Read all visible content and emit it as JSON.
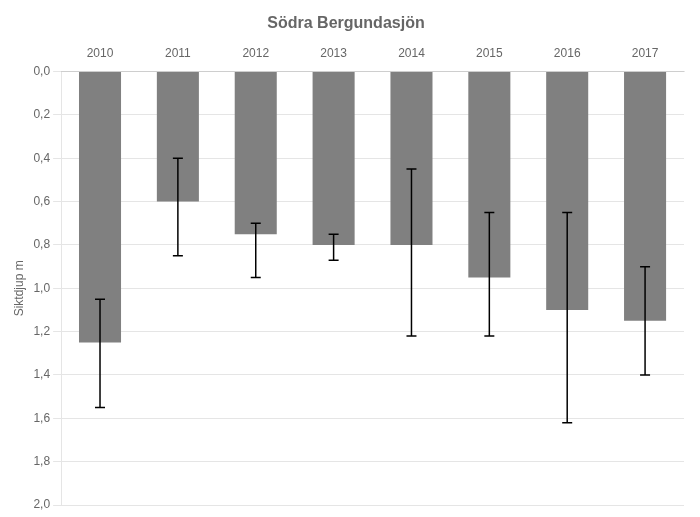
{
  "chart_data": {
    "type": "bar",
    "title": "Södra Bergundasjön",
    "ylabel": "Siktdjup m",
    "categories": [
      "2010",
      "2011",
      "2012",
      "2013",
      "2014",
      "2015",
      "2016",
      "2017"
    ],
    "values": [
      1.25,
      0.6,
      0.75,
      0.8,
      0.8,
      0.95,
      1.1,
      1.15
    ],
    "err_upper": [
      1.05,
      0.4,
      0.7,
      0.75,
      0.45,
      0.65,
      0.65,
      0.9
    ],
    "err_lower": [
      1.55,
      0.85,
      0.95,
      0.87,
      1.22,
      1.22,
      1.62,
      1.4
    ],
    "color": "#808080",
    "ylim": [
      2.0,
      0.0
    ],
    "yticks": [
      {
        "value": 0.0,
        "label": "0,0"
      },
      {
        "value": 0.2,
        "label": "0,2"
      },
      {
        "value": 0.4,
        "label": "0,4"
      },
      {
        "value": 0.6,
        "label": "0,6"
      },
      {
        "value": 0.8,
        "label": "0,8"
      },
      {
        "value": 1.0,
        "label": "1,0"
      },
      {
        "value": 1.2,
        "label": "1,2"
      },
      {
        "value": 1.4,
        "label": "1,4"
      },
      {
        "value": 1.6,
        "label": "1,6"
      },
      {
        "value": 1.8,
        "label": "1,8"
      },
      {
        "value": 2.0,
        "label": "2,0"
      }
    ],
    "grid": true
  }
}
